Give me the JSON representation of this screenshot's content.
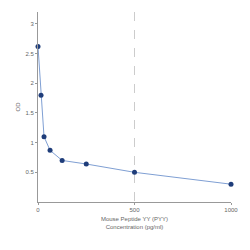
{
  "chart_data": {
    "type": "line",
    "marker": "circle",
    "color": "#1f3d7a",
    "x": [
      0,
      15.6,
      31.25,
      62.5,
      125,
      250,
      500,
      1000
    ],
    "values": [
      2.62,
      1.8,
      1.1,
      0.87,
      0.7,
      0.64,
      0.5,
      0.3
    ],
    "xlabel": "Mouse Peptide YY (PYY)\nConcentration (pg/ml)",
    "ylabel": "OD",
    "xlim": [
      0,
      1000
    ],
    "xticks": [
      0,
      500,
      1000
    ],
    "ylim": [
      0,
      3.2
    ],
    "yticks": [
      0.5,
      1,
      1.5,
      2,
      2.5,
      3
    ],
    "grid": true
  }
}
